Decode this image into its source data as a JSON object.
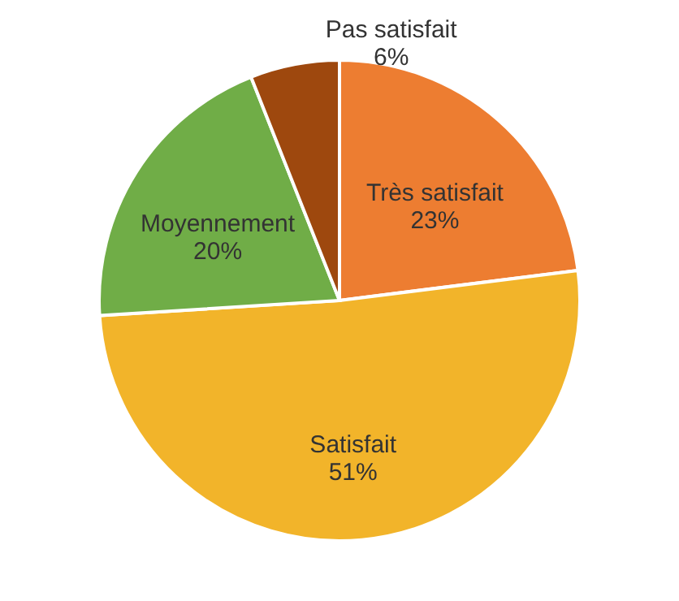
{
  "chart_data": {
    "type": "pie",
    "categories": [
      "Très satisfait",
      "Satisfait",
      "Moyennement",
      "Pas satisfait"
    ],
    "values": [
      23,
      51,
      20,
      6
    ],
    "value_labels": [
      "23%",
      "51%",
      "20%",
      "6%"
    ],
    "colors": [
      "#ed7d31",
      "#f2b42a",
      "#70ad47",
      "#9e480e"
    ]
  }
}
